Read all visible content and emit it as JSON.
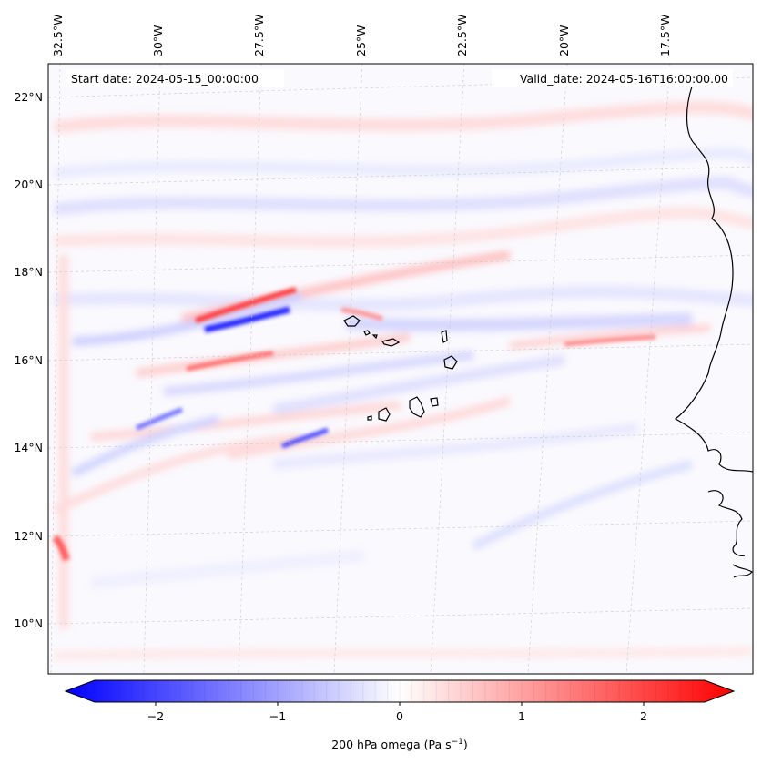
{
  "map": {
    "start_date": "Start date: 2024-05-15_00:00:00",
    "valid_date": "Valid_date: 2024-05-16T16:00:00.00",
    "lon_labels": [
      "32.5°W",
      "30°W",
      "27.5°W",
      "25°W",
      "22.5°W",
      "20°W",
      "17.5°W"
    ],
    "lat_labels": [
      "22°N",
      "20°N",
      "18°N",
      "16°N",
      "14°N",
      "12°N",
      "10°N"
    ]
  },
  "colorbar": {
    "label": "200 hPa omega (Pa s",
    "label_sup": "−1",
    "label_close": ")",
    "ticks": [
      "−2",
      "−1",
      "0",
      "1",
      "2"
    ],
    "range": [
      -2.5,
      2.5
    ],
    "colors": {
      "negative": "#0000ff",
      "zero": "#ffffff",
      "positive": "#ff0000"
    }
  }
}
